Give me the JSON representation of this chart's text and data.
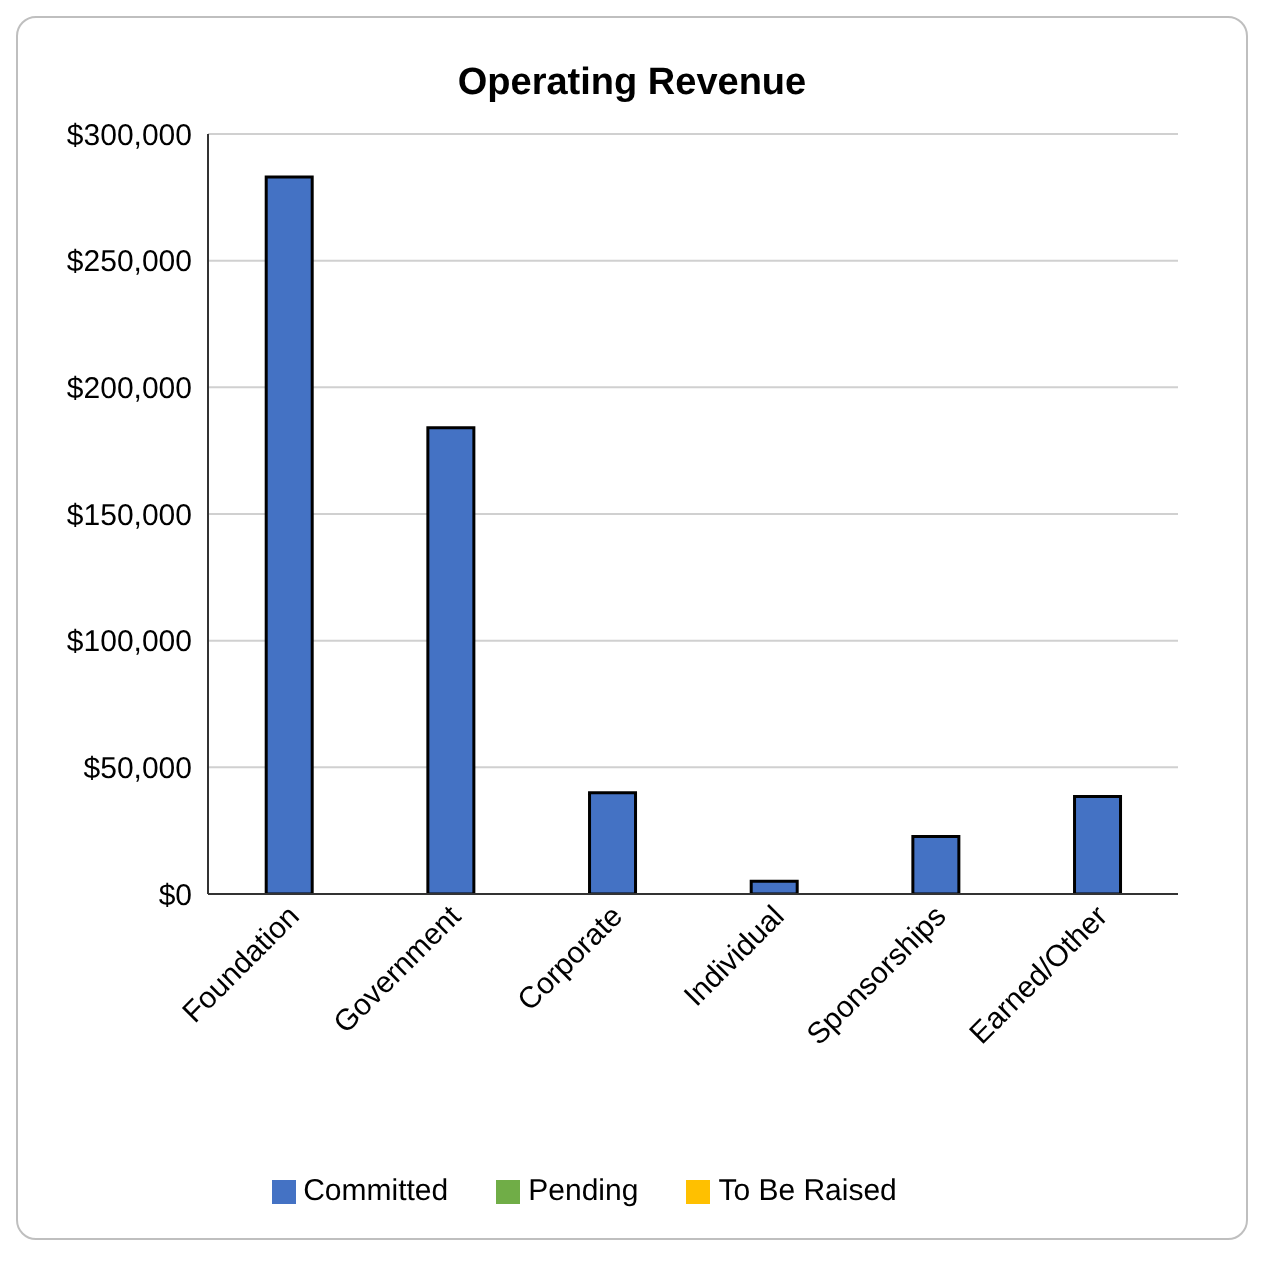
{
  "chart_data": {
    "type": "bar",
    "title": "Operating Revenue",
    "categories": [
      "Foundation",
      "Government",
      "Corporate",
      "Individual",
      "Sponsorships",
      "Earned/Other"
    ],
    "stacked": true,
    "series": [
      {
        "name": "Committed",
        "color": "#4472c4",
        "values": [
          283000,
          184000,
          40000,
          5000,
          22700,
          38500
        ]
      },
      {
        "name": "Pending",
        "color": "#70ad47",
        "values": [
          0,
          0,
          0,
          0,
          0,
          0
        ]
      },
      {
        "name": "To Be Raised",
        "color": "#ffc000",
        "values": [
          0,
          0,
          0,
          0,
          0,
          0
        ]
      }
    ],
    "ylim": [
      0,
      300000
    ],
    "yticks": [
      {
        "value": 0,
        "label": "$0"
      },
      {
        "value": 50000,
        "label": "$50,000"
      },
      {
        "value": 100000,
        "label": "$100,000"
      },
      {
        "value": 150000,
        "label": "$150,000"
      },
      {
        "value": 200000,
        "label": "$200,000"
      },
      {
        "value": 250000,
        "label": "$250,000"
      },
      {
        "value": 300000,
        "label": "$300,000"
      }
    ],
    "grid": "y",
    "legend": "bottom"
  }
}
